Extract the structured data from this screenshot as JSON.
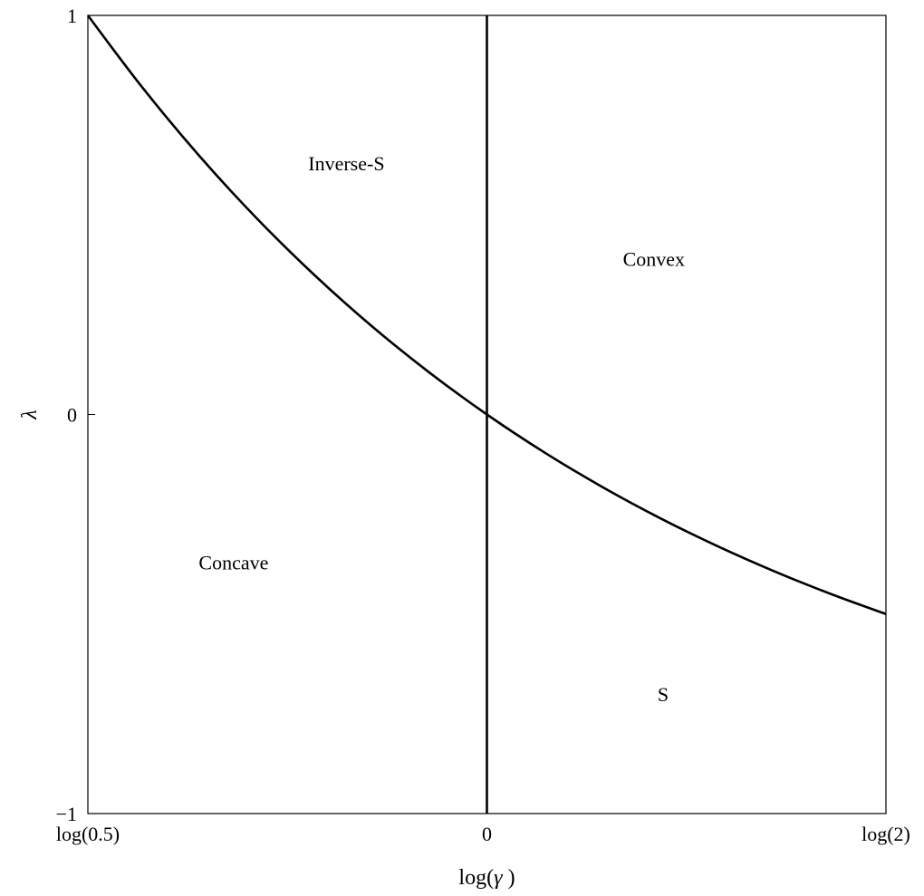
{
  "chart_data": {
    "type": "line",
    "title": "",
    "xlabel": {
      "prefix": "log(",
      "symbol": "γ",
      "suffix": " )"
    },
    "ylabel": "λ",
    "xlim": [
      -0.693147,
      0.693147
    ],
    "ylim": [
      -1,
      1
    ],
    "x_ticks": [
      {
        "value": -0.693147,
        "label": "log(0.5)"
      },
      {
        "value": 0,
        "label": "0"
      },
      {
        "value": 0.693147,
        "label": "log(2)"
      }
    ],
    "y_ticks": [
      {
        "value": -1,
        "label": "−1"
      },
      {
        "value": 0,
        "label": "0"
      },
      {
        "value": 1,
        "label": "1"
      }
    ],
    "grid": false,
    "series": [
      {
        "x": [
          -0.693147,
          -0.6,
          -0.5,
          -0.4,
          -0.3,
          -0.2,
          -0.1,
          0,
          0.1,
          0.2,
          0.3,
          0.4,
          0.5,
          0.6,
          0.693147
        ],
        "y": [
          1.0,
          0.8221,
          0.6487,
          0.4918,
          0.3499,
          0.2214,
          0.1052,
          0.0,
          -0.0952,
          -0.1813,
          -0.2592,
          -0.3297,
          -0.3935,
          -0.4512,
          -0.5
        ]
      }
    ],
    "vertical_lines": [
      0
    ],
    "annotations": [
      {
        "text": "Inverse-S",
        "x": -0.244,
        "y": 0.63
      },
      {
        "text": "Convex",
        "x": 0.29,
        "y": 0.39
      },
      {
        "text": "Concave",
        "x": -0.44,
        "y": -0.37
      },
      {
        "text": "S",
        "x": 0.306,
        "y": -0.7
      }
    ],
    "colors": {
      "line": "#000000",
      "frame": "#000000",
      "background": "#ffffff"
    }
  }
}
